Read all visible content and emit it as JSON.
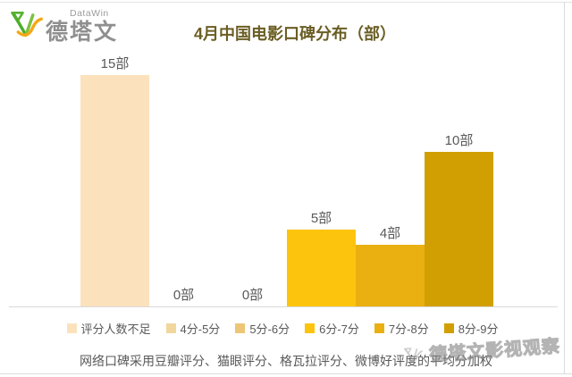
{
  "logo": {
    "brand_en": "DataWin",
    "brand_cn": "德塔文"
  },
  "chart_data": {
    "type": "bar",
    "title": "4月中国电影口碑分布（部）",
    "categories": [
      "评分人数不足",
      "4分-5分",
      "5分-6分",
      "6分-7分",
      "7分-8分",
      "8分-9分"
    ],
    "values": [
      15,
      0,
      0,
      5,
      4,
      10
    ],
    "unit": "部",
    "value_labels": [
      "15部",
      "0部",
      "0部",
      "5部",
      "4部",
      "10部"
    ],
    "bar_colors": [
      "#FBE2BD",
      "#F1D69E",
      "#EDC776",
      "#FDC40D",
      "#EAB011",
      "#D29F02"
    ],
    "ylim": [
      0,
      16
    ],
    "grid": false,
    "legend_position": "bottom",
    "xlabel": "",
    "ylabel": "",
    "footnote": "网络口碑采用豆瓣评分、猫眼评分、格瓦拉评分、微博好评度的平均分加权"
  },
  "watermark": {
    "text": "德塔文影视观察"
  },
  "colors": {
    "title": "#6B5E24",
    "text_gray": "#595959",
    "logo_green": "#56B230",
    "logo_yellow": "#F3A816",
    "axis_line": "#D9D9D9"
  }
}
